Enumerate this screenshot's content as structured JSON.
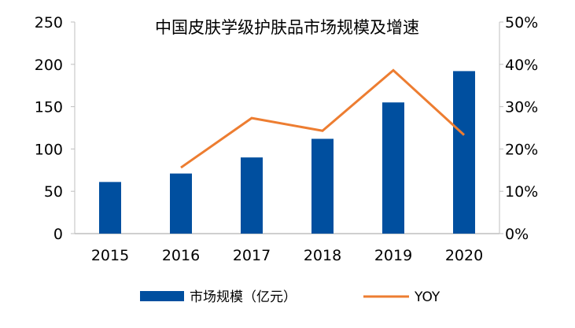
{
  "chart_data": {
    "type": "bar",
    "title": "中国皮肤学级护肤品市场规模及增速",
    "categories": [
      "2015",
      "2016",
      "2017",
      "2018",
      "2019",
      "2020"
    ],
    "series": [
      {
        "name": "市场规模（亿元）",
        "type": "bar",
        "axis": "left",
        "color": "#004f9f",
        "values": [
          61,
          71,
          90,
          112,
          155,
          192
        ]
      },
      {
        "name": "YOY",
        "type": "line",
        "axis": "right",
        "color": "#ed7d31",
        "values": [
          null,
          15.6,
          27.3,
          24.3,
          38.6,
          23.3
        ]
      }
    ],
    "ylim": [
      0,
      250
    ],
    "yticks": [
      "0",
      "50",
      "100",
      "150",
      "200",
      "250"
    ],
    "y2lim": [
      0,
      50
    ],
    "y2ticks": [
      "0%",
      "10%",
      "20%",
      "30%",
      "40%",
      "50%"
    ],
    "legend": "bottom",
    "grid": false
  }
}
